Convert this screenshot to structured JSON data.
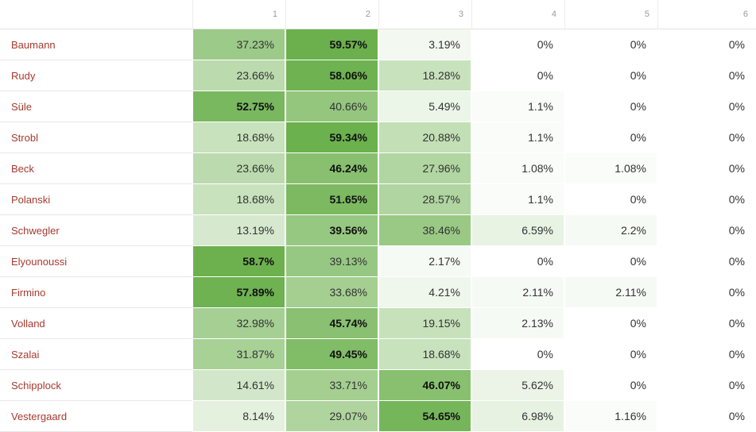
{
  "columns": [
    "1",
    "2",
    "3",
    "4",
    "5",
    "6"
  ],
  "rows": [
    {
      "name": "Baumann",
      "values": [
        "37.23%",
        "59.57%",
        "3.19%",
        "0%",
        "0%",
        "0%"
      ],
      "pct": [
        37.23,
        59.57,
        3.19,
        0,
        0,
        0
      ]
    },
    {
      "name": "Rudy",
      "values": [
        "23.66%",
        "58.06%",
        "18.28%",
        "0%",
        "0%",
        "0%"
      ],
      "pct": [
        23.66,
        58.06,
        18.28,
        0,
        0,
        0
      ]
    },
    {
      "name": "Süle",
      "values": [
        "52.75%",
        "40.66%",
        "5.49%",
        "1.1%",
        "0%",
        "0%"
      ],
      "pct": [
        52.75,
        40.66,
        5.49,
        1.1,
        0,
        0
      ]
    },
    {
      "name": "Strobl",
      "values": [
        "18.68%",
        "59.34%",
        "20.88%",
        "1.1%",
        "0%",
        "0%"
      ],
      "pct": [
        18.68,
        59.34,
        20.88,
        1.1,
        0,
        0
      ]
    },
    {
      "name": "Beck",
      "values": [
        "23.66%",
        "46.24%",
        "27.96%",
        "1.08%",
        "1.08%",
        "0%"
      ],
      "pct": [
        23.66,
        46.24,
        27.96,
        1.08,
        1.08,
        0
      ]
    },
    {
      "name": "Polanski",
      "values": [
        "18.68%",
        "51.65%",
        "28.57%",
        "1.1%",
        "0%",
        "0%"
      ],
      "pct": [
        18.68,
        51.65,
        28.57,
        1.1,
        0,
        0
      ]
    },
    {
      "name": "Schwegler",
      "values": [
        "13.19%",
        "39.56%",
        "38.46%",
        "6.59%",
        "2.2%",
        "0%"
      ],
      "pct": [
        13.19,
        39.56,
        38.46,
        6.59,
        2.2,
        0
      ]
    },
    {
      "name": "Elyounoussi",
      "values": [
        "58.7%",
        "39.13%",
        "2.17%",
        "0%",
        "0%",
        "0%"
      ],
      "pct": [
        58.7,
        39.13,
        2.17,
        0,
        0,
        0
      ]
    },
    {
      "name": "Firmino",
      "values": [
        "57.89%",
        "33.68%",
        "4.21%",
        "2.11%",
        "2.11%",
        "0%"
      ],
      "pct": [
        57.89,
        33.68,
        4.21,
        2.11,
        2.11,
        0
      ]
    },
    {
      "name": "Volland",
      "values": [
        "32.98%",
        "45.74%",
        "19.15%",
        "2.13%",
        "0%",
        "0%"
      ],
      "pct": [
        32.98,
        45.74,
        19.15,
        2.13,
        0,
        0
      ]
    },
    {
      "name": "Szalai",
      "values": [
        "31.87%",
        "49.45%",
        "18.68%",
        "0%",
        "0%",
        "0%"
      ],
      "pct": [
        31.87,
        49.45,
        18.68,
        0,
        0,
        0
      ]
    },
    {
      "name": "Schipplock",
      "values": [
        "14.61%",
        "33.71%",
        "46.07%",
        "5.62%",
        "0%",
        "0%"
      ],
      "pct": [
        14.61,
        33.71,
        46.07,
        5.62,
        0,
        0
      ]
    },
    {
      "name": "Vestergaard",
      "values": [
        "8.14%",
        "29.07%",
        "54.65%",
        "6.98%",
        "1.16%",
        "0%"
      ],
      "pct": [
        8.14,
        29.07,
        54.65,
        6.98,
        1.16,
        0
      ]
    }
  ],
  "colors": {
    "heat_max": "#6ab04c",
    "heat_min": "#ffffff",
    "name_link": "#a63a2e"
  }
}
